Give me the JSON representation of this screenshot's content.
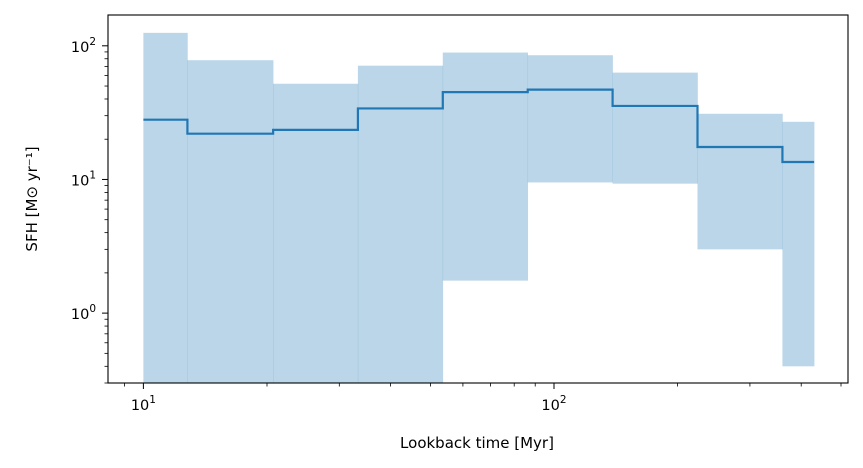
{
  "chart_data": {
    "type": "area",
    "xlabel": "Lookback time [Myr]",
    "ylabel": "SFH [M⊙ yr⁻¹]",
    "xscale": "log",
    "yscale": "log",
    "xlim": [
      8.2,
      520
    ],
    "ylim": [
      0.3,
      170
    ],
    "grid": false,
    "x_ticks": [
      {
        "value": 10,
        "base": "10",
        "exp": "1"
      },
      {
        "value": 100,
        "base": "10",
        "exp": "2"
      }
    ],
    "y_ticks": [
      {
        "value": 1,
        "base": "10",
        "exp": "0"
      },
      {
        "value": 10,
        "base": "10",
        "exp": "1"
      },
      {
        "value": 100,
        "base": "10",
        "exp": "2"
      }
    ],
    "bin_edges": [
      10,
      12.8,
      20.7,
      33.3,
      53.6,
      86.3,
      138.9,
      223.6,
      360,
      430
    ],
    "median": [
      28,
      22,
      23.5,
      34,
      45,
      47,
      35.5,
      17.5,
      13.5
    ],
    "lower": [
      0.3,
      0.3,
      0.3,
      0.3,
      1.75,
      9.5,
      9.3,
      3.0,
      0.4
    ],
    "upper": [
      125,
      78,
      52,
      71,
      89,
      85,
      63,
      31,
      27
    ],
    "colors": {
      "line": "#1f77b4",
      "band": "#1f77b4",
      "band_opacity": 0.3
    }
  }
}
